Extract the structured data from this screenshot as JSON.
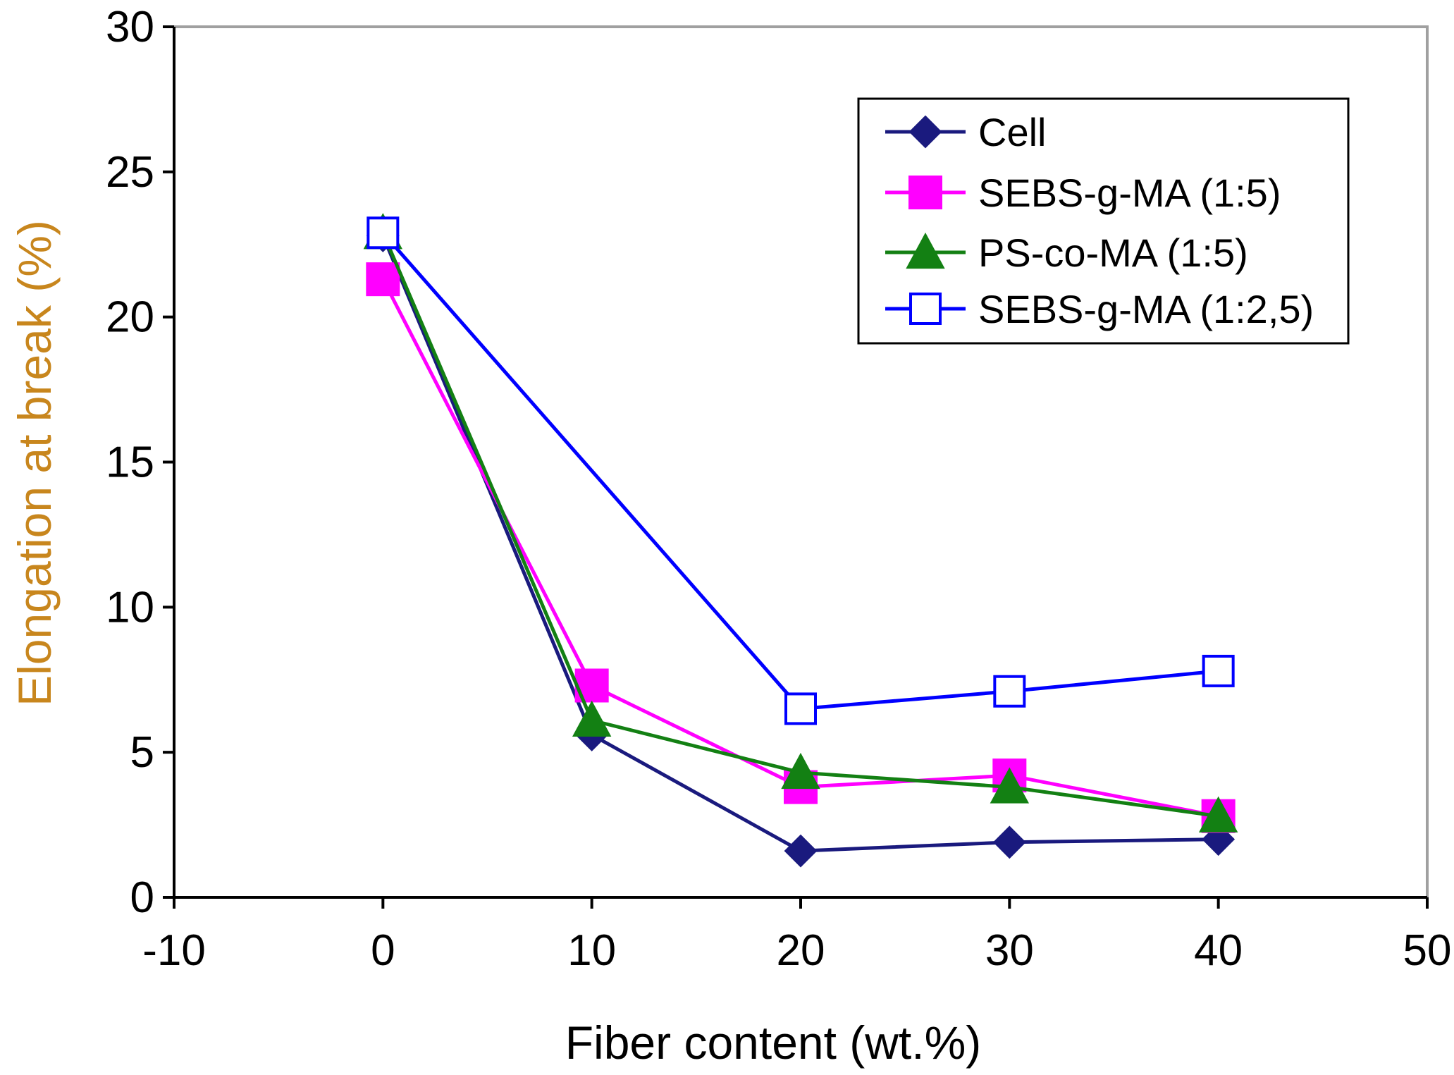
{
  "chart_data": {
    "type": "line",
    "title": "",
    "xlabel": "Fiber content (wt.%)",
    "ylabel": "Elongation at break (%)",
    "xlim": [
      -10,
      50
    ],
    "ylim": [
      0,
      30
    ],
    "xticks": [
      -10,
      0,
      10,
      20,
      30,
      40,
      50
    ],
    "yticks": [
      0,
      5,
      10,
      15,
      20,
      25,
      30
    ],
    "xtick_labels": [
      "-10",
      "0",
      "10",
      "20",
      "30",
      "40",
      "50"
    ],
    "ytick_labels": [
      "0",
      "5",
      "10",
      "15",
      "20",
      "25",
      "30"
    ],
    "grid": false,
    "legend_position": "top-right",
    "series": [
      {
        "name": "Cell",
        "marker": "diamond",
        "color": "#1a1a7e",
        "x": [
          0,
          10,
          20,
          30,
          40
        ],
        "y": [
          22.8,
          5.6,
          1.6,
          1.9,
          2.0
        ]
      },
      {
        "name": "SEBS-g-MA (1:5)",
        "marker": "square",
        "color": "#ff00ff",
        "x": [
          0,
          10,
          20,
          30,
          40
        ],
        "y": [
          21.3,
          7.3,
          3.8,
          4.2,
          2.8
        ]
      },
      {
        "name": "PS-co-MA (1:5)",
        "marker": "triangle",
        "color": "#138013",
        "x": [
          0,
          10,
          20,
          30,
          40
        ],
        "y": [
          22.9,
          6.1,
          4.3,
          3.8,
          2.8
        ]
      },
      {
        "name": "SEBS-g-MA (1:2,5)",
        "marker": "open-square",
        "color": "#0000ff",
        "x": [
          0,
          20,
          30,
          40
        ],
        "y": [
          22.9,
          6.5,
          7.1,
          7.8
        ]
      }
    ]
  }
}
